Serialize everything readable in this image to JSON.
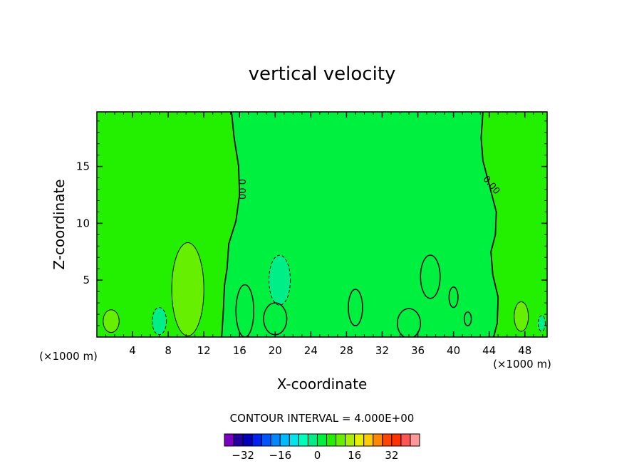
{
  "chart_data": {
    "type": "contour",
    "title": "vertical velocity",
    "xlabel": "X-coordinate",
    "ylabel": "Z-coordinate",
    "x_unit": "(×1000 m)",
    "xlim": [
      0,
      50.5
    ],
    "ylim": [
      0,
      19.8
    ],
    "x_ticks": [
      4,
      8,
      12,
      16,
      20,
      24,
      28,
      32,
      36,
      40,
      44,
      48
    ],
    "y_ticks": [
      5,
      10,
      15
    ],
    "contour_interval_text": "CONTOUR INTERVAL = 4.000E+00",
    "contour_labels": [
      "0.00",
      "0.00"
    ],
    "zero_contours": [
      {
        "name": "left-boundary",
        "points": [
          [
            15.1,
            19.8
          ],
          [
            15.4,
            17.5
          ],
          [
            15.9,
            15
          ],
          [
            16.0,
            12.5
          ],
          [
            15.6,
            10.2
          ],
          [
            14.8,
            8.2
          ],
          [
            14.6,
            6.0
          ],
          [
            14.3,
            4.5
          ],
          [
            14.2,
            2.5
          ],
          [
            14.0,
            0.0
          ]
        ]
      },
      {
        "name": "right-boundary",
        "points": [
          [
            43.3,
            19.8
          ],
          [
            43.1,
            17.5
          ],
          [
            43.3,
            15.5
          ],
          [
            44.2,
            12.8
          ],
          [
            44.8,
            11.0
          ],
          [
            44.7,
            9.0
          ],
          [
            44.2,
            7.5
          ],
          [
            44.4,
            5.5
          ],
          [
            45.0,
            3.5
          ],
          [
            44.9,
            1.2
          ],
          [
            44.5,
            0.0
          ]
        ]
      }
    ],
    "features": [
      {
        "name": "updraft-core",
        "level": 8,
        "center": [
          10.0,
          3.6
        ],
        "radius": [
          0.9,
          2.5
        ]
      },
      {
        "name": "updraft-outer",
        "level": 4,
        "center": [
          10.2,
          4.2
        ],
        "radius": [
          1.8,
          4.1
        ]
      },
      {
        "name": "left-bump",
        "level": 4,
        "center": [
          1.6,
          1.4
        ],
        "radius": [
          0.9,
          1.0
        ]
      },
      {
        "name": "right-bump",
        "level": 4,
        "center": [
          47.6,
          1.8
        ],
        "radius": [
          0.8,
          1.3
        ]
      },
      {
        "name": "downdraft-20",
        "level": -4,
        "center": [
          20.5,
          5.0
        ],
        "radius": [
          1.2,
          2.2
        ]
      },
      {
        "name": "downdraft-7",
        "level": -4,
        "center": [
          7.0,
          1.4
        ],
        "radius": [
          0.8,
          1.2
        ]
      },
      {
        "name": "downdraft-50",
        "level": -4,
        "center": [
          49.9,
          1.2
        ],
        "radius": [
          0.4,
          0.7
        ]
      }
    ],
    "colorbar": {
      "levels": [
        -36,
        -32,
        -28,
        -24,
        -20,
        -16,
        -12,
        -8,
        -4,
        0,
        4,
        8,
        12,
        16,
        20,
        24,
        28,
        32,
        36
      ],
      "colors": [
        "#7a00c4",
        "#22009e",
        "#0000bb",
        "#0022f0",
        "#0055ff",
        "#0088ff",
        "#00bbff",
        "#00e5ee",
        "#00ffbb",
        "#00ee88",
        "#00f040",
        "#22f000",
        "#66f000",
        "#aaf000",
        "#e6f000",
        "#ffcc00",
        "#ff8800",
        "#ff4400",
        "#ff3300",
        "#ff5555",
        "#ff9999"
      ],
      "labels": [
        "-32",
        "-16",
        "0",
        "16",
        "32"
      ]
    },
    "fill_colors": {
      "neg4": "#00ee88",
      "zero": "#00f040",
      "pos4": "#22f000",
      "pos8": "#66f000",
      "pos12": "#ccf000"
    }
  }
}
